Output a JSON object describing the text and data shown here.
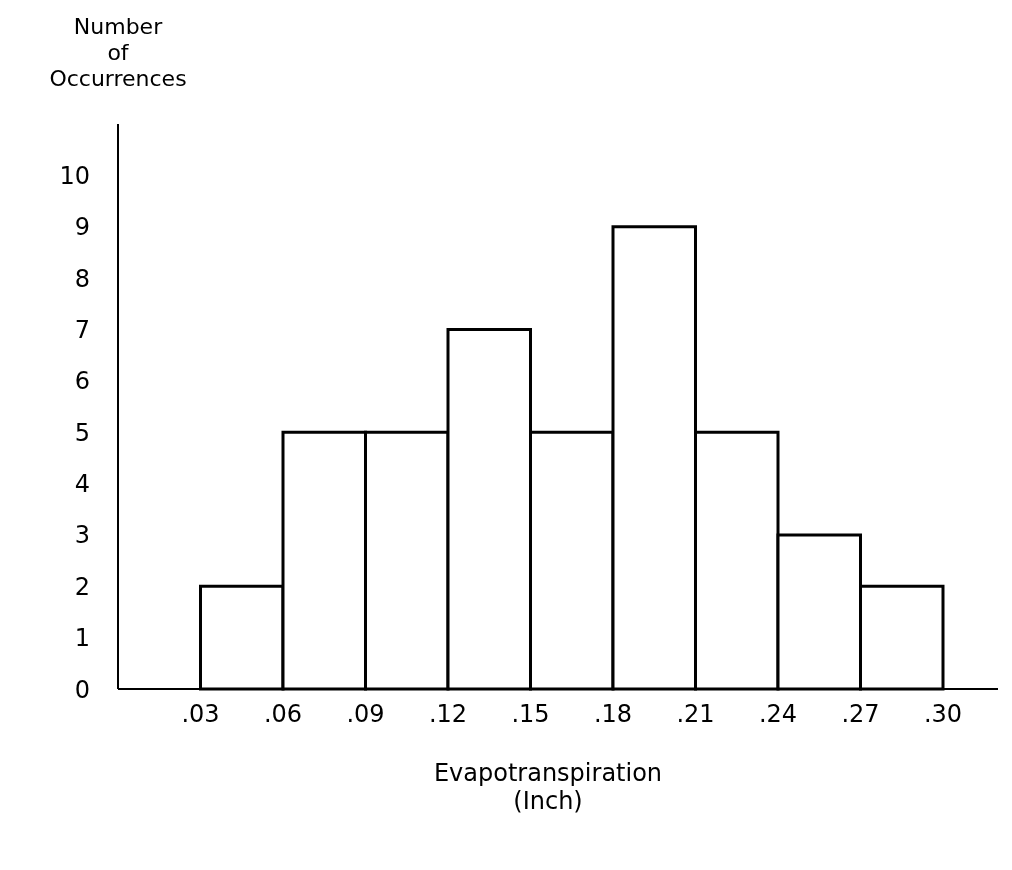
{
  "chart_data": {
    "type": "histogram",
    "xlabel": "Evapotranspiration (Inch)",
    "ylabel": "Number of Occurrences",
    "bins": [
      0.03,
      0.06,
      0.09,
      0.12,
      0.15,
      0.18,
      0.21,
      0.24,
      0.27,
      0.3
    ],
    "values": [
      2,
      5,
      5,
      7,
      5,
      9,
      5,
      3,
      2
    ],
    "color": "#ffffff",
    "xlim": [
      0,
      0.32
    ],
    "xticks": [
      {
        "value": 0.03,
        "label": ".03"
      },
      {
        "value": 0.06,
        "label": ".06"
      },
      {
        "value": 0.09,
        "label": ".09"
      },
      {
        "value": 0.12,
        "label": ".12"
      },
      {
        "value": 0.15,
        "label": ".15"
      },
      {
        "value": 0.18,
        "label": ".18"
      },
      {
        "value": 0.21,
        "label": ".21"
      },
      {
        "value": 0.24,
        "label": ".24"
      },
      {
        "value": 0.27,
        "label": ".27"
      },
      {
        "value": 0.3,
        "label": ".30"
      }
    ],
    "ylim": [
      0,
      11
    ],
    "yticks": [
      0,
      1,
      2,
      3,
      4,
      5,
      6,
      7,
      8,
      9,
      10
    ],
    "grid": false
  }
}
